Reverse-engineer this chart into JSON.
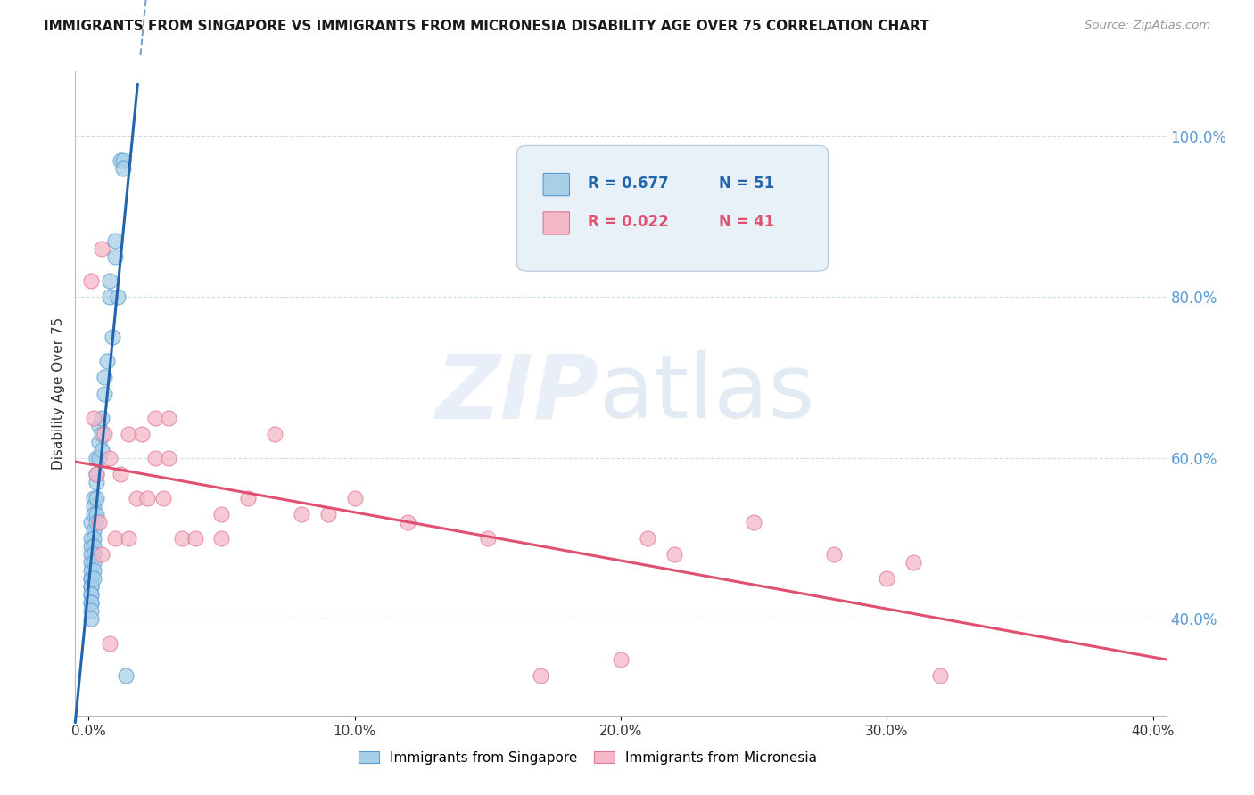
{
  "title": "IMMIGRANTS FROM SINGAPORE VS IMMIGRANTS FROM MICRONESIA DISABILITY AGE OVER 75 CORRELATION CHART",
  "source": "Source: ZipAtlas.com",
  "ylabel": "Disability Age Over 75",
  "yright_ticks": [
    "40.0%",
    "60.0%",
    "80.0%",
    "100.0%"
  ],
  "yright_vals": [
    0.4,
    0.6,
    0.8,
    1.0
  ],
  "xlim_min": 0.0,
  "xlim_max": 0.4,
  "ylim_min": 0.28,
  "ylim_max": 1.08,
  "legend_blue_R": "R = 0.677",
  "legend_blue_N": "N = 51",
  "legend_pink_R": "R = 0.022",
  "legend_pink_N": "N = 41",
  "blue_fill": "#a8cfe8",
  "blue_edge": "#5b9bd5",
  "pink_fill": "#f4b8c8",
  "pink_edge": "#e07898",
  "blue_line": "#2166ac",
  "pink_line": "#e05070",
  "legend_R_blue": "#2166ac",
  "legend_N_blue": "#2166ac",
  "legend_R_pink": "#e05070",
  "legend_N_pink": "#e05070",
  "background_color": "#ffffff",
  "grid_color": "#c8d8e8",
  "right_axis_color": "#5b9bd5",
  "legend_box_color": "#e8f0f8",
  "legend_edge_color": "#b0c8e0",
  "sg_x": [
    0.001,
    0.001,
    0.001,
    0.001,
    0.001,
    0.001,
    0.001,
    0.001,
    0.001,
    0.001,
    0.001,
    0.001,
    0.001,
    0.001,
    0.001,
    0.001,
    0.002,
    0.002,
    0.002,
    0.002,
    0.002,
    0.002,
    0.002,
    0.002,
    0.002,
    0.002,
    0.003,
    0.003,
    0.003,
    0.003,
    0.003,
    0.003,
    0.004,
    0.004,
    0.004,
    0.005,
    0.005,
    0.005,
    0.006,
    0.006,
    0.007,
    0.008,
    0.008,
    0.009,
    0.01,
    0.01,
    0.011,
    0.012,
    0.013,
    0.013,
    0.014
  ],
  "sg_y": [
    0.52,
    0.5,
    0.49,
    0.48,
    0.47,
    0.46,
    0.45,
    0.45,
    0.44,
    0.44,
    0.43,
    0.43,
    0.42,
    0.42,
    0.41,
    0.4,
    0.55,
    0.54,
    0.53,
    0.51,
    0.5,
    0.49,
    0.48,
    0.47,
    0.46,
    0.45,
    0.6,
    0.58,
    0.57,
    0.55,
    0.53,
    0.52,
    0.64,
    0.62,
    0.6,
    0.65,
    0.63,
    0.61,
    0.7,
    0.68,
    0.72,
    0.82,
    0.8,
    0.75,
    0.87,
    0.85,
    0.8,
    0.97,
    0.97,
    0.96,
    0.33
  ],
  "mc_x": [
    0.001,
    0.002,
    0.003,
    0.004,
    0.005,
    0.006,
    0.008,
    0.01,
    0.012,
    0.015,
    0.015,
    0.018,
    0.02,
    0.022,
    0.025,
    0.025,
    0.028,
    0.03,
    0.03,
    0.035,
    0.04,
    0.05,
    0.05,
    0.06,
    0.07,
    0.08,
    0.09,
    0.1,
    0.12,
    0.15,
    0.17,
    0.2,
    0.21,
    0.22,
    0.25,
    0.28,
    0.3,
    0.31,
    0.32,
    0.005,
    0.008
  ],
  "mc_y": [
    0.82,
    0.65,
    0.58,
    0.52,
    0.86,
    0.63,
    0.6,
    0.5,
    0.58,
    0.63,
    0.5,
    0.55,
    0.63,
    0.55,
    0.65,
    0.6,
    0.55,
    0.65,
    0.6,
    0.5,
    0.5,
    0.53,
    0.5,
    0.55,
    0.63,
    0.53,
    0.53,
    0.55,
    0.52,
    0.5,
    0.33,
    0.35,
    0.5,
    0.48,
    0.52,
    0.48,
    0.45,
    0.47,
    0.33,
    0.48,
    0.37
  ]
}
